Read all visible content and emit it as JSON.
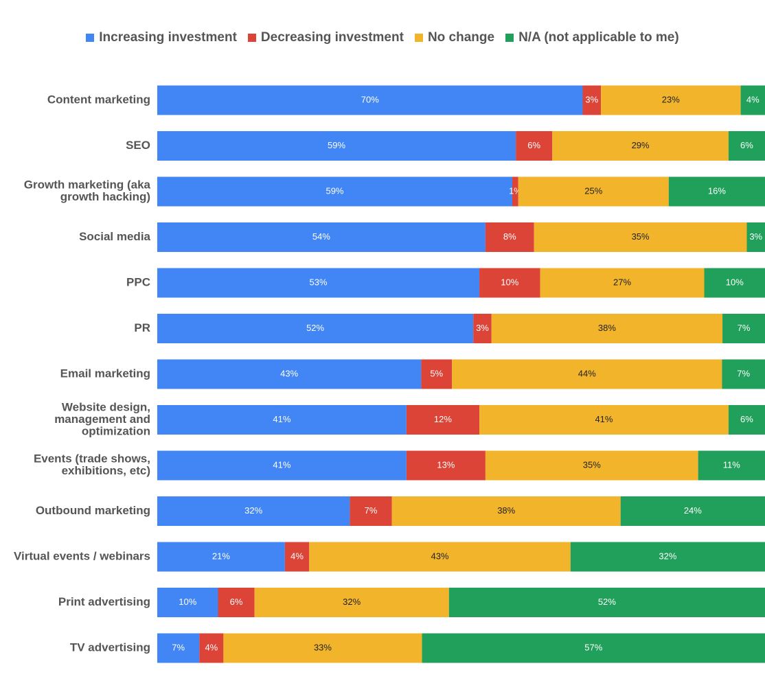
{
  "colors": {
    "increasing": "#4285f4",
    "decreasing": "#db4437",
    "no_change": "#f2b42b",
    "na": "#20a05a"
  },
  "chart_data": {
    "type": "bar",
    "orientation": "horizontal",
    "stacked": true,
    "percent_stacked": true,
    "legend_position": "top",
    "grid": false,
    "xlim": [
      0,
      100
    ],
    "categories": [
      "Content marketing",
      "SEO",
      "Growth marketing (aka growth hacking)",
      "Social media",
      "PPC",
      "PR",
      "Email marketing",
      "Website design, management and optimization",
      "Events (trade shows, exhibitions, etc)",
      "Outbound marketing",
      "Virtual events / webinars",
      "Print advertising",
      "TV advertising"
    ],
    "category_lines": [
      [
        "Content marketing"
      ],
      [
        "SEO"
      ],
      [
        "Growth marketing (aka",
        "growth hacking)"
      ],
      [
        "Social media"
      ],
      [
        "PPC"
      ],
      [
        "PR"
      ],
      [
        "Email marketing"
      ],
      [
        "Website design,",
        "management and",
        "optimization"
      ],
      [
        "Events (trade shows,",
        "exhibitions, etc)"
      ],
      [
        "Outbound marketing"
      ],
      [
        "Virtual events / webinars"
      ],
      [
        "Print advertising"
      ],
      [
        "TV advertising"
      ]
    ],
    "series": [
      {
        "key": "increasing",
        "name": "Increasing investment",
        "label_color": "#ffffff",
        "values": [
          70,
          59,
          59,
          54,
          53,
          52,
          43,
          41,
          41,
          32,
          21,
          10,
          7
        ],
        "labels": [
          "70%",
          "59%",
          "59%",
          "54%",
          "53%",
          "52%",
          "43%",
          "41%",
          "41%",
          "32%",
          "21%",
          "10%",
          "7%"
        ]
      },
      {
        "key": "decreasing",
        "name": "Decreasing investment",
        "label_color": "#ffffff",
        "values": [
          3,
          6,
          1,
          8,
          10,
          3,
          5,
          12,
          13,
          7,
          4,
          6,
          4
        ],
        "labels": [
          "3%",
          "6%",
          "1%",
          "8%",
          "10%",
          "3%",
          "5%",
          "12%",
          "13%",
          "7%",
          "4%",
          "6%",
          "4%"
        ]
      },
      {
        "key": "no_change",
        "name": "No change",
        "label_color": "#222222",
        "values": [
          23,
          29,
          25,
          35,
          27,
          38,
          44,
          41,
          35,
          38,
          43,
          32,
          33
        ],
        "labels": [
          "23%",
          "29%",
          "25%",
          "35%",
          "27%",
          "38%",
          "44%",
          "41%",
          "35%",
          "38%",
          "43%",
          "32%",
          "33%"
        ]
      },
      {
        "key": "na",
        "name": "N/A (not applicable to me)",
        "label_color": "#ffffff",
        "values": [
          4,
          6,
          16,
          3,
          10,
          7,
          7,
          6,
          11,
          24,
          32,
          52,
          57
        ],
        "labels": [
          "4%",
          "6%",
          "16%",
          "3%",
          "10%",
          "7%",
          "7%",
          "6%",
          "11%",
          "24%",
          "32%",
          "52%",
          "57%"
        ]
      }
    ]
  }
}
